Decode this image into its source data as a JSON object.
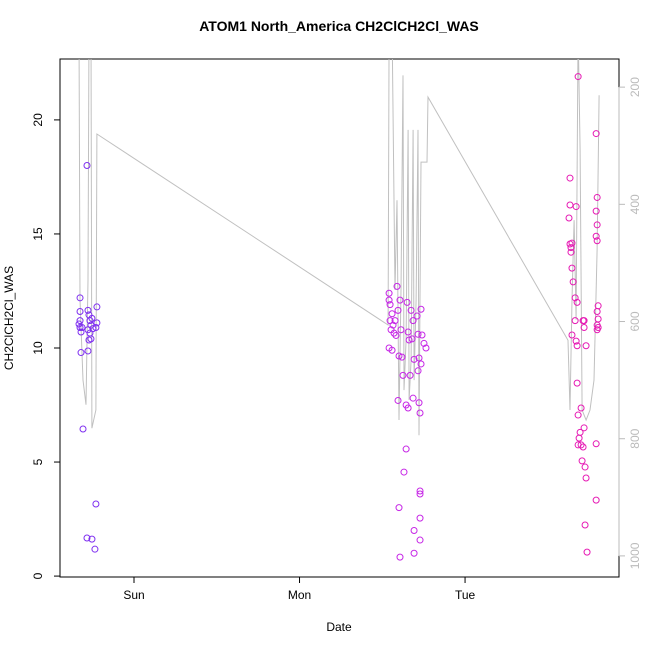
{
  "chart_data": {
    "type": "scatter",
    "title": "ATOM1 North_America CH2ClCH2Cl_WAS",
    "xlabel": "Date",
    "ylabel": "CH2ClCH2Cl_WAS",
    "xlim": [
      -0.447,
      2.93
    ],
    "xticks": [
      {
        "value": 0,
        "label": "Sun"
      },
      {
        "value": 1,
        "label": "Mon"
      },
      {
        "value": 2,
        "label": "Tue"
      }
    ],
    "ylim": [
      -0.04,
      22.67
    ],
    "yticks": [
      0,
      5,
      10,
      15,
      20
    ],
    "y2lim": [
      1036,
      152
    ],
    "y2ticks": [
      200,
      400,
      600,
      800,
      1000
    ],
    "series": [
      {
        "type": "scatter",
        "color": "#7f2ff0",
        "x": [
          -0.326,
          -0.326,
          -0.326,
          -0.332,
          -0.326,
          -0.32,
          -0.314,
          -0.32,
          -0.308,
          -0.284,
          -0.278,
          -0.272,
          -0.266,
          -0.26,
          -0.278,
          -0.266,
          -0.254,
          -0.248,
          -0.272,
          -0.26,
          -0.278,
          -0.224,
          -0.224,
          -0.23,
          -0.284,
          -0.254,
          -0.236,
          -0.23
        ],
        "values": [
          12.2,
          11.6,
          11.2,
          11.05,
          10.9,
          10.7,
          10.9,
          9.8,
          6.45,
          18.0,
          11.65,
          11.45,
          11.2,
          11.0,
          10.8,
          10.65,
          11.3,
          10.85,
          10.35,
          10.4,
          9.87,
          11.8,
          11.1,
          10.9,
          1.67,
          1.62,
          1.18,
          3.16
        ]
      },
      {
        "type": "scatter",
        "color": "#c626e6",
        "x": [
          1.541,
          1.541,
          1.547,
          1.559,
          1.547,
          1.565,
          1.553,
          1.571,
          1.541,
          1.559,
          1.577,
          1.589,
          1.595,
          1.583,
          1.601,
          1.607,
          1.613,
          1.619,
          1.595,
          1.625,
          1.631,
          1.644,
          1.601,
          1.65,
          1.656,
          1.662,
          1.668,
          1.656,
          1.674,
          1.686,
          1.68,
          1.692,
          1.686,
          1.692,
          1.692,
          1.71,
          1.716,
          1.722,
          1.728,
          1.722,
          1.716,
          1.728,
          1.728,
          1.728,
          1.728,
          1.734,
          1.74,
          1.752,
          1.764,
          1.607,
          1.644,
          1.734
        ],
        "values": [
          12.4,
          12.1,
          11.9,
          11.5,
          11.2,
          11.0,
          10.8,
          10.65,
          10.0,
          9.9,
          11.2,
          12.7,
          11.65,
          10.55,
          9.65,
          12.1,
          10.8,
          9.6,
          7.7,
          8.8,
          4.56,
          5.57,
          3.0,
          12.0,
          10.7,
          10.35,
          8.8,
          7.37,
          11.65,
          11.2,
          10.4,
          9.5,
          7.8,
          2.0,
          1.0,
          11.4,
          10.6,
          9.56,
          7.15,
          7.6,
          9.0,
          2.54,
          3.73,
          3.6,
          1.58,
          11.7,
          10.57,
          10.2,
          10.0,
          0.83,
          7.5,
          9.3
        ]
      },
      {
        "type": "scatter",
        "color": "#e61ab4",
        "x": [
          2.634,
          2.634,
          2.671,
          2.628,
          2.634,
          2.64,
          2.646,
          2.64,
          2.646,
          2.653,
          2.665,
          2.677,
          2.665,
          2.646,
          2.671,
          2.677,
          2.683,
          2.677,
          2.683,
          2.701,
          2.695,
          2.689,
          2.701,
          2.683,
          2.713,
          2.707,
          2.725,
          2.731,
          2.719,
          2.719,
          2.719,
          2.731,
          2.725,
          2.737,
          2.792,
          2.798,
          2.792,
          2.798,
          2.792,
          2.798,
          2.804,
          2.798,
          2.804,
          2.798,
          2.804,
          2.798,
          2.792,
          2.792,
          2.713
        ],
        "values": [
          17.45,
          16.27,
          16.2,
          15.7,
          14.56,
          14.4,
          14.6,
          14.2,
          13.5,
          12.9,
          12.2,
          12.0,
          11.2,
          10.57,
          10.3,
          10.1,
          21.9,
          8.46,
          7.06,
          7.37,
          6.3,
          6.05,
          5.75,
          5.75,
          5.66,
          5.05,
          4.78,
          4.3,
          6.5,
          11.2,
          10.9,
          10.1,
          2.24,
          1.05,
          19.4,
          16.6,
          16.0,
          15.4,
          14.9,
          14.7,
          11.85,
          11.6,
          11.27,
          11.0,
          10.9,
          10.8,
          5.8,
          3.33,
          11.2
        ]
      },
      {
        "type": "line",
        "axis": "y2",
        "color": "#c0c0c0",
        "x": [
          -0.332,
          -0.326,
          -0.308,
          -0.29,
          -0.278,
          -0.272,
          -0.26,
          -0.254,
          -0.23,
          -0.224,
          1.535,
          1.541,
          1.559,
          1.577,
          1.589,
          1.601,
          1.613,
          1.625,
          1.631,
          1.644,
          1.656,
          1.662,
          1.674,
          1.686,
          1.692,
          1.704,
          1.716,
          1.722,
          1.734,
          1.77,
          1.776,
          2.622,
          2.634,
          2.646,
          2.659,
          2.671,
          2.683,
          2.695,
          2.707,
          2.731,
          2.755,
          2.779,
          2.798,
          2.81
        ],
        "values": [
          100,
          563,
          700,
          742,
          529,
          100,
          100,
          782,
          751,
          280,
          606,
          100,
          100,
          546,
          393,
          768,
          546,
          180,
          717,
          632,
          273,
          734,
          666,
          273,
          700,
          563,
          273,
          794,
          328,
          328,
          217,
          632,
          751,
          563,
          427,
          597,
          100,
          307,
          751,
          768,
          751,
          700,
          478,
          214
        ]
      }
    ]
  }
}
